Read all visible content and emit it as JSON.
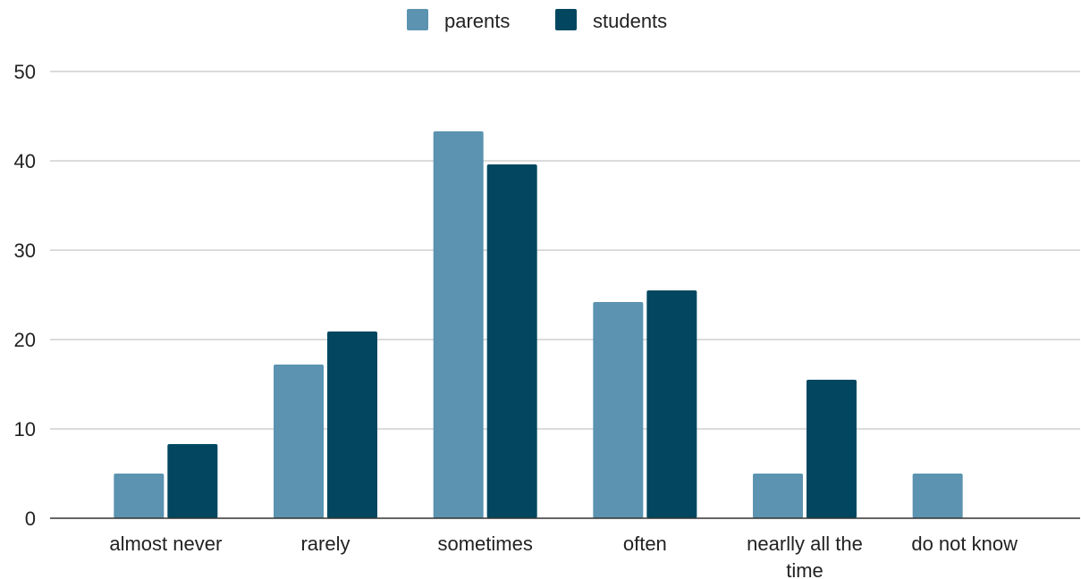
{
  "chart_data": {
    "type": "bar",
    "title": "",
    "xlabel": "",
    "ylabel": "",
    "ylim": [
      0,
      50
    ],
    "yticks": [
      0,
      10,
      20,
      30,
      40,
      50
    ],
    "grid": true,
    "legend_position": "top",
    "categories": [
      [
        "almost never"
      ],
      [
        "rarely"
      ],
      [
        "sometimes"
      ],
      [
        "often"
      ],
      [
        "nearlly all the",
        "time"
      ],
      [
        "do not know"
      ]
    ],
    "series": [
      {
        "name": "parents",
        "color": "#5b93b0",
        "values": [
          5,
          17.2,
          43.3,
          24.2,
          5,
          5
        ]
      },
      {
        "name": "students",
        "color": "#02475f",
        "values": [
          8.3,
          20.9,
          39.6,
          25.5,
          15.5,
          0
        ]
      }
    ]
  }
}
